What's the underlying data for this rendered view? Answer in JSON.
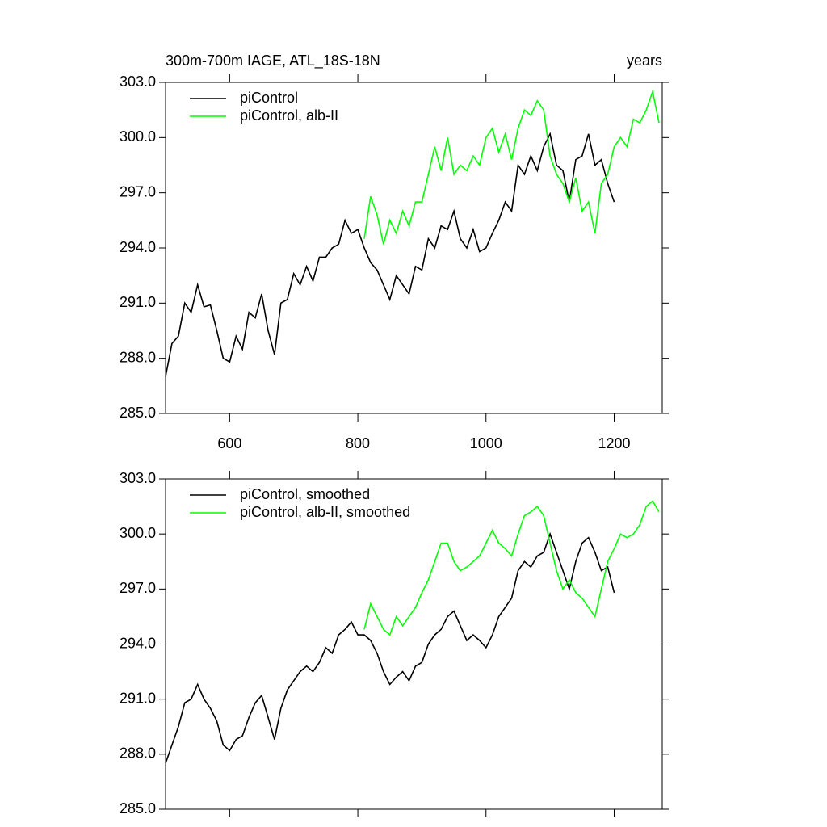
{
  "chart_data": [
    {
      "type": "line",
      "title": "300m-700m IAGE, ATL_18S-18N",
      "right_title": "years",
      "xlim": [
        500,
        1275
      ],
      "xticks": [
        600,
        800,
        1000,
        1200
      ],
      "show_xtick_labels": true,
      "ylim": [
        285,
        303
      ],
      "yticks": [
        {
          "value": 285,
          "label": "285.0"
        },
        {
          "value": 288,
          "label": "288.0"
        },
        {
          "value": 291,
          "label": "291.0"
        },
        {
          "value": 294,
          "label": "294.0"
        },
        {
          "value": 297,
          "label": "297.0"
        },
        {
          "value": 300,
          "label": "300.0"
        },
        {
          "value": 303,
          "label": "303.0"
        }
      ],
      "legend": "top-left",
      "series": [
        {
          "name": "piControl",
          "color": "#000000",
          "x": [
            500,
            510,
            520,
            530,
            540,
            550,
            560,
            570,
            580,
            590,
            600,
            610,
            620,
            630,
            640,
            650,
            660,
            670,
            680,
            690,
            700,
            710,
            720,
            730,
            740,
            750,
            760,
            770,
            780,
            790,
            800,
            810,
            820,
            830,
            840,
            850,
            860,
            870,
            880,
            890,
            900,
            910,
            920,
            930,
            940,
            950,
            960,
            970,
            980,
            990,
            1000,
            1010,
            1020,
            1030,
            1040,
            1050,
            1060,
            1070,
            1080,
            1090,
            1100,
            1110,
            1120,
            1130,
            1140,
            1150,
            1160,
            1170,
            1180,
            1190,
            1200
          ],
          "values": [
            287.0,
            288.8,
            289.2,
            291.0,
            290.5,
            292.0,
            290.8,
            290.9,
            289.5,
            288.0,
            287.8,
            289.2,
            288.5,
            290.5,
            290.2,
            291.5,
            289.5,
            288.2,
            291.0,
            291.2,
            292.6,
            292.0,
            293.0,
            292.2,
            293.5,
            293.5,
            294.0,
            294.2,
            295.5,
            294.8,
            295.0,
            294.0,
            293.2,
            292.8,
            292.0,
            291.2,
            292.5,
            292.0,
            291.5,
            293.0,
            292.8,
            294.5,
            294.0,
            295.2,
            295.0,
            296.0,
            294.5,
            294.0,
            295.0,
            293.8,
            294.0,
            294.8,
            295.5,
            296.5,
            296.0,
            298.5,
            298.0,
            299.0,
            298.2,
            299.5,
            300.2,
            298.5,
            298.2,
            296.5,
            298.8,
            299.0,
            300.2,
            298.5,
            298.8,
            297.5,
            296.5
          ]
        },
        {
          "name": "piControl, alb-II",
          "color": "#00ff00",
          "x": [
            810,
            820,
            830,
            840,
            850,
            860,
            870,
            880,
            890,
            900,
            910,
            920,
            930,
            940,
            950,
            960,
            970,
            980,
            990,
            1000,
            1010,
            1020,
            1030,
            1040,
            1050,
            1060,
            1070,
            1080,
            1090,
            1100,
            1110,
            1120,
            1130,
            1140,
            1150,
            1160,
            1170,
            1180,
            1190,
            1200,
            1210,
            1220,
            1230,
            1240,
            1250,
            1260,
            1270
          ],
          "values": [
            294.5,
            296.8,
            295.8,
            294.2,
            295.5,
            294.8,
            296.0,
            295.2,
            296.5,
            296.5,
            298.0,
            299.5,
            298.2,
            300.0,
            298.0,
            298.5,
            298.2,
            299.0,
            298.5,
            300.0,
            300.5,
            299.2,
            300.2,
            298.8,
            300.5,
            301.5,
            301.2,
            302.0,
            301.5,
            299.0,
            298.0,
            297.5,
            296.5,
            297.8,
            296.0,
            296.5,
            294.8,
            297.5,
            298.0,
            299.5,
            300.0,
            299.5,
            301.0,
            300.8,
            301.5,
            302.5,
            300.8
          ]
        }
      ]
    },
    {
      "type": "line",
      "xlim": [
        500,
        1275
      ],
      "xticks": [
        600,
        800,
        1000,
        1200
      ],
      "show_xtick_labels": false,
      "ylim": [
        285,
        303
      ],
      "yticks": [
        {
          "value": 285,
          "label": "285.0"
        },
        {
          "value": 288,
          "label": "288.0"
        },
        {
          "value": 291,
          "label": "291.0"
        },
        {
          "value": 294,
          "label": "294.0"
        },
        {
          "value": 297,
          "label": "297.0"
        },
        {
          "value": 300,
          "label": "300.0"
        },
        {
          "value": 303,
          "label": "303.0"
        }
      ],
      "legend": "top-left",
      "series": [
        {
          "name": "piControl, smoothed",
          "color": "#000000",
          "x": [
            500,
            510,
            520,
            530,
            540,
            550,
            560,
            570,
            580,
            590,
            600,
            610,
            620,
            630,
            640,
            650,
            660,
            670,
            680,
            690,
            700,
            710,
            720,
            730,
            740,
            750,
            760,
            770,
            780,
            790,
            800,
            810,
            820,
            830,
            840,
            850,
            860,
            870,
            880,
            890,
            900,
            910,
            920,
            930,
            940,
            950,
            960,
            970,
            980,
            990,
            1000,
            1010,
            1020,
            1030,
            1040,
            1050,
            1060,
            1070,
            1080,
            1090,
            1100,
            1110,
            1120,
            1130,
            1140,
            1150,
            1160,
            1170,
            1180,
            1190,
            1200
          ],
          "values": [
            287.5,
            288.5,
            289.5,
            290.8,
            291.0,
            291.8,
            291.0,
            290.5,
            289.8,
            288.5,
            288.2,
            288.8,
            289.0,
            290.0,
            290.8,
            291.2,
            290.0,
            288.8,
            290.5,
            291.5,
            292.0,
            292.5,
            292.8,
            292.5,
            293.0,
            293.8,
            293.5,
            294.5,
            294.8,
            295.2,
            294.5,
            294.5,
            294.2,
            293.5,
            292.5,
            291.8,
            292.2,
            292.5,
            292.0,
            292.8,
            293.0,
            294.0,
            294.5,
            294.8,
            295.5,
            295.8,
            295.0,
            294.2,
            294.5,
            294.2,
            293.8,
            294.5,
            295.5,
            296.0,
            296.5,
            298.0,
            298.5,
            298.2,
            298.8,
            299.0,
            300.0,
            299.0,
            298.0,
            297.0,
            298.5,
            299.5,
            299.8,
            299.0,
            298.0,
            298.2,
            296.8
          ]
        },
        {
          "name": "piControl, alb-II, smoothed",
          "color": "#00ff00",
          "x": [
            810,
            820,
            830,
            840,
            850,
            860,
            870,
            880,
            890,
            900,
            910,
            920,
            930,
            940,
            950,
            960,
            970,
            980,
            990,
            1000,
            1010,
            1020,
            1030,
            1040,
            1050,
            1060,
            1070,
            1080,
            1090,
            1100,
            1110,
            1120,
            1130,
            1140,
            1150,
            1160,
            1170,
            1180,
            1190,
            1200,
            1210,
            1220,
            1230,
            1240,
            1250,
            1260,
            1270
          ],
          "values": [
            294.8,
            296.2,
            295.5,
            294.8,
            294.5,
            295.5,
            295.0,
            295.5,
            296.0,
            296.8,
            297.5,
            298.5,
            299.5,
            299.5,
            298.5,
            298.0,
            298.2,
            298.5,
            298.8,
            299.5,
            300.2,
            299.5,
            299.2,
            298.8,
            300.0,
            301.0,
            301.2,
            301.5,
            301.0,
            299.5,
            298.0,
            297.0,
            297.5,
            296.8,
            296.5,
            296.0,
            295.5,
            297.0,
            298.5,
            299.2,
            300.0,
            299.8,
            300.0,
            300.5,
            301.5,
            301.8,
            301.2
          ]
        }
      ]
    }
  ]
}
